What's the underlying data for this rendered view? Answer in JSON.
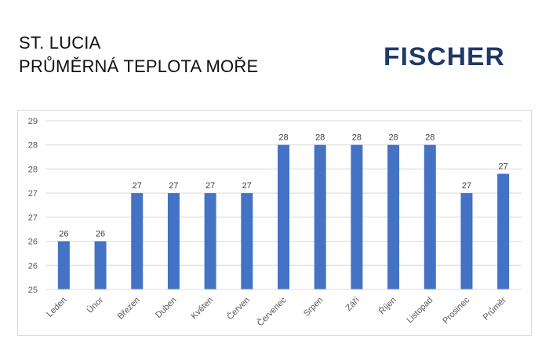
{
  "header": {
    "title_line1": "ST. LUCIA",
    "title_line2": "PRŮMĚRNÁ TEPLOTA MOŘE",
    "logo_text": "FISCHER"
  },
  "colors": {
    "bar": "#4472c4",
    "grid": "#d9d9d9",
    "logo": "#1f3a68"
  },
  "chart_data": {
    "type": "bar",
    "categories": [
      "Leden",
      "Únor",
      "Březen",
      "Duben",
      "Květen",
      "Červen",
      "Červenec",
      "Srpen",
      "Září",
      "Říjen",
      "Listopad",
      "Prosinec",
      "Průměr"
    ],
    "values": [
      26.0,
      26.0,
      27.0,
      27.0,
      27.0,
      27.0,
      28.0,
      28.0,
      28.0,
      28.0,
      28.0,
      27.0,
      27.4
    ],
    "data_labels": [
      "26",
      "26",
      "27",
      "27",
      "27",
      "27",
      "28",
      "28",
      "28",
      "28",
      "28",
      "27",
      "27"
    ],
    "yticks": [
      25.0,
      25.5,
      26.0,
      26.5,
      27.0,
      27.5,
      28.0,
      28.5
    ],
    "ytick_labels": [
      "25",
      "26",
      "26",
      "27",
      "27",
      "28",
      "28",
      "29"
    ],
    "ylim": [
      25,
      28.5
    ],
    "grid": true,
    "legend": "none",
    "title": "",
    "xlabel": "",
    "ylabel": ""
  }
}
